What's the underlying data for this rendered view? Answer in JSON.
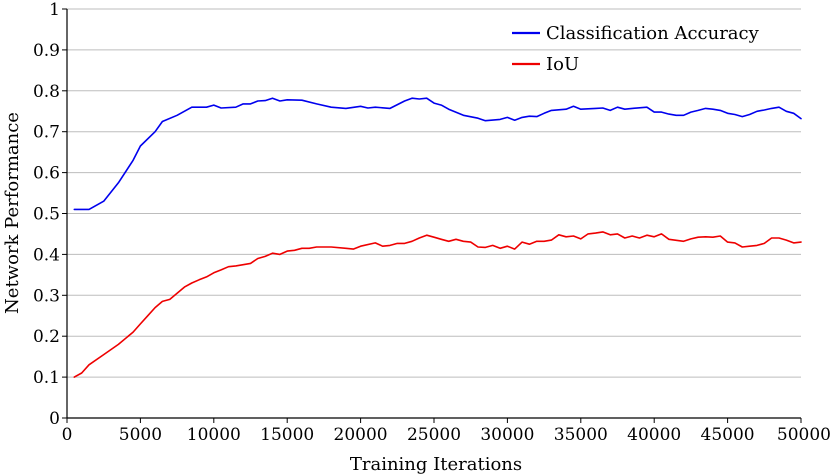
{
  "chart_data": {
    "type": "line",
    "title": "",
    "xlabel": "Training Iterations",
    "ylabel": "Network Performance",
    "xlim": [
      0,
      50000
    ],
    "ylim": [
      0,
      1
    ],
    "grid": "horizontal",
    "legend_position": "top-right",
    "x_ticks": [
      "0",
      "5000",
      "10000",
      "15000",
      "20000",
      "25000",
      "30000",
      "35000",
      "40000",
      "45000",
      "50000"
    ],
    "y_ticks": [
      "0",
      "0.1",
      "0.2",
      "0.3",
      "0.4",
      "0.5",
      "0.6",
      "0.7",
      "0.8",
      "0.9",
      "1"
    ],
    "series": [
      {
        "name": "Classification Accuracy",
        "color": "#0000ee",
        "points": [
          [
            500,
            0.51
          ],
          [
            1500,
            0.51
          ],
          [
            2500,
            0.53
          ],
          [
            3500,
            0.575
          ],
          [
            4500,
            0.63
          ],
          [
            5000,
            0.665
          ],
          [
            6000,
            0.7
          ],
          [
            6500,
            0.725
          ],
          [
            7500,
            0.74
          ],
          [
            8500,
            0.76
          ],
          [
            9500,
            0.76
          ],
          [
            10000,
            0.765
          ],
          [
            10500,
            0.758
          ],
          [
            11500,
            0.76
          ],
          [
            12000,
            0.768
          ],
          [
            12500,
            0.768
          ],
          [
            13000,
            0.775
          ],
          [
            13500,
            0.776
          ],
          [
            14000,
            0.782
          ],
          [
            14500,
            0.775
          ],
          [
            15000,
            0.778
          ],
          [
            16000,
            0.777
          ],
          [
            17000,
            0.768
          ],
          [
            18000,
            0.76
          ],
          [
            19000,
            0.757
          ],
          [
            20000,
            0.762
          ],
          [
            20500,
            0.758
          ],
          [
            21000,
            0.76
          ],
          [
            22000,
            0.757
          ],
          [
            23000,
            0.775
          ],
          [
            23500,
            0.782
          ],
          [
            24000,
            0.78
          ],
          [
            24500,
            0.782
          ],
          [
            25000,
            0.77
          ],
          [
            25500,
            0.765
          ],
          [
            26000,
            0.755
          ],
          [
            27000,
            0.74
          ],
          [
            28000,
            0.733
          ],
          [
            28500,
            0.727
          ],
          [
            29500,
            0.73
          ],
          [
            30000,
            0.735
          ],
          [
            30500,
            0.728
          ],
          [
            31000,
            0.735
          ],
          [
            31500,
            0.738
          ],
          [
            32000,
            0.737
          ],
          [
            32500,
            0.745
          ],
          [
            33000,
            0.752
          ],
          [
            34000,
            0.755
          ],
          [
            34500,
            0.762
          ],
          [
            35000,
            0.755
          ],
          [
            36000,
            0.757
          ],
          [
            36500,
            0.758
          ],
          [
            37000,
            0.752
          ],
          [
            37500,
            0.76
          ],
          [
            38000,
            0.755
          ],
          [
            38500,
            0.757
          ],
          [
            39500,
            0.76
          ],
          [
            40000,
            0.748
          ],
          [
            40500,
            0.748
          ],
          [
            41000,
            0.743
          ],
          [
            41500,
            0.74
          ],
          [
            42000,
            0.74
          ],
          [
            42500,
            0.748
          ],
          [
            43000,
            0.752
          ],
          [
            43500,
            0.757
          ],
          [
            44000,
            0.755
          ],
          [
            44500,
            0.752
          ],
          [
            45000,
            0.745
          ],
          [
            45500,
            0.742
          ],
          [
            46000,
            0.737
          ],
          [
            46500,
            0.742
          ],
          [
            47000,
            0.75
          ],
          [
            47500,
            0.753
          ],
          [
            48000,
            0.757
          ],
          [
            48500,
            0.76
          ],
          [
            49000,
            0.75
          ],
          [
            49500,
            0.745
          ],
          [
            50000,
            0.732
          ]
        ]
      },
      {
        "name": "IoU",
        "color": "#ee0000",
        "points": [
          [
            500,
            0.1
          ],
          [
            1000,
            0.11
          ],
          [
            1500,
            0.13
          ],
          [
            2500,
            0.155
          ],
          [
            3500,
            0.18
          ],
          [
            4500,
            0.21
          ],
          [
            5000,
            0.23
          ],
          [
            5500,
            0.25
          ],
          [
            6000,
            0.27
          ],
          [
            6500,
            0.285
          ],
          [
            7000,
            0.29
          ],
          [
            7500,
            0.305
          ],
          [
            8000,
            0.32
          ],
          [
            8500,
            0.33
          ],
          [
            9000,
            0.338
          ],
          [
            9500,
            0.345
          ],
          [
            10000,
            0.355
          ],
          [
            10500,
            0.362
          ],
          [
            11000,
            0.37
          ],
          [
            11500,
            0.372
          ],
          [
            12500,
            0.378
          ],
          [
            13000,
            0.39
          ],
          [
            13500,
            0.395
          ],
          [
            14000,
            0.403
          ],
          [
            14500,
            0.4
          ],
          [
            15000,
            0.408
          ],
          [
            15500,
            0.41
          ],
          [
            16000,
            0.415
          ],
          [
            16500,
            0.415
          ],
          [
            17000,
            0.418
          ],
          [
            18000,
            0.418
          ],
          [
            19000,
            0.415
          ],
          [
            19500,
            0.413
          ],
          [
            20000,
            0.42
          ],
          [
            21000,
            0.428
          ],
          [
            21500,
            0.42
          ],
          [
            22000,
            0.422
          ],
          [
            22500,
            0.427
          ],
          [
            23000,
            0.427
          ],
          [
            23500,
            0.432
          ],
          [
            24000,
            0.44
          ],
          [
            24500,
            0.447
          ],
          [
            25000,
            0.442
          ],
          [
            25500,
            0.437
          ],
          [
            26000,
            0.432
          ],
          [
            26500,
            0.437
          ],
          [
            27000,
            0.432
          ],
          [
            27500,
            0.43
          ],
          [
            28000,
            0.418
          ],
          [
            28500,
            0.417
          ],
          [
            29000,
            0.422
          ],
          [
            29500,
            0.415
          ],
          [
            30000,
            0.42
          ],
          [
            30500,
            0.413
          ],
          [
            31000,
            0.43
          ],
          [
            31500,
            0.425
          ],
          [
            32000,
            0.432
          ],
          [
            32500,
            0.432
          ],
          [
            33000,
            0.435
          ],
          [
            33500,
            0.448
          ],
          [
            34000,
            0.443
          ],
          [
            34500,
            0.445
          ],
          [
            35000,
            0.438
          ],
          [
            35500,
            0.45
          ],
          [
            36000,
            0.452
          ],
          [
            36500,
            0.455
          ],
          [
            37000,
            0.448
          ],
          [
            37500,
            0.45
          ],
          [
            38000,
            0.44
          ],
          [
            38500,
            0.445
          ],
          [
            39000,
            0.44
          ],
          [
            39500,
            0.447
          ],
          [
            40000,
            0.443
          ],
          [
            40500,
            0.45
          ],
          [
            41000,
            0.437
          ],
          [
            42000,
            0.432
          ],
          [
            42500,
            0.438
          ],
          [
            43000,
            0.442
          ],
          [
            43500,
            0.443
          ],
          [
            44000,
            0.442
          ],
          [
            44500,
            0.445
          ],
          [
            45000,
            0.43
          ],
          [
            45500,
            0.428
          ],
          [
            46000,
            0.418
          ],
          [
            46500,
            0.42
          ],
          [
            47000,
            0.422
          ],
          [
            47500,
            0.427
          ],
          [
            48000,
            0.44
          ],
          [
            48500,
            0.44
          ],
          [
            49000,
            0.435
          ],
          [
            49500,
            0.428
          ],
          [
            50000,
            0.43
          ]
        ]
      }
    ]
  }
}
